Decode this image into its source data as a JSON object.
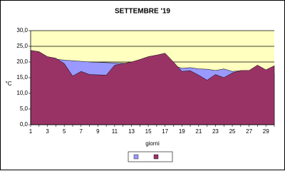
{
  "chart_data": {
    "type": "area",
    "title": "SETTEMBRE  '19",
    "x_label": "giorni",
    "y_label": "°C",
    "categories": [
      1,
      null,
      3,
      null,
      5,
      null,
      7,
      null,
      9,
      null,
      11,
      null,
      13,
      null,
      15,
      null,
      17,
      null,
      19,
      null,
      21,
      null,
      23,
      null,
      25,
      null,
      27,
      null,
      29,
      null
    ],
    "series": [
      {
        "color": "#9999ff",
        "values": [
          21.5,
          21.3,
          21.1,
          20.9,
          20.6,
          20.4,
          20.2,
          20.0,
          19.9,
          19.8,
          19.7,
          19.6,
          19.5,
          19.3,
          19.2,
          19.1,
          19.0,
          18.9,
          18.0,
          18.2,
          17.8,
          17.7,
          17.3,
          17.8,
          17.0,
          17.2,
          17.0,
          16.8,
          16.6,
          16.4
        ]
      },
      {
        "color": "#993366",
        "values": [
          23.7,
          23.3,
          21.7,
          21.2,
          19.5,
          15.5,
          17.0,
          16.0,
          15.9,
          15.8,
          19.0,
          19.5,
          20.0,
          20.8,
          21.7,
          22.2,
          22.8,
          20.0,
          17.0,
          17.2,
          15.8,
          14.2,
          16.0,
          15.0,
          16.5,
          17.3,
          17.3,
          19.0,
          17.5,
          18.8
        ]
      }
    ],
    "ylim": [
      0,
      30
    ],
    "yticks": [
      {
        "value": 0,
        "label": "0,0"
      },
      {
        "value": 5,
        "label": "5,0"
      },
      {
        "value": 10,
        "label": "10,0"
      },
      {
        "value": 15,
        "label": "15,0"
      },
      {
        "value": 20,
        "label": "20,0"
      },
      {
        "value": 25,
        "label": "25,0"
      },
      {
        "value": 30,
        "label": "30,0"
      }
    ],
    "grid": true,
    "plot_background": "#ffffc0"
  }
}
